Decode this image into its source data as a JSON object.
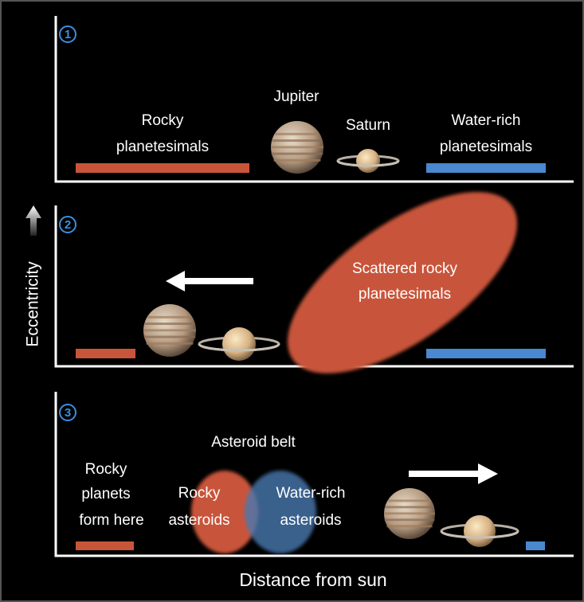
{
  "y_axis_label": "Eccentricity",
  "x_axis_label": "Distance from sun",
  "panels": [
    {
      "number": "1",
      "labels": {
        "rocky": [
          "Rocky",
          "planetesimals"
        ],
        "jupiter": "Jupiter",
        "saturn": "Saturn",
        "water": [
          "Water-rich",
          "planetesimals"
        ]
      }
    },
    {
      "number": "2",
      "labels": {
        "scattered": [
          "Scattered rocky",
          "planetesimals"
        ]
      }
    },
    {
      "number": "3",
      "labels": {
        "belt": "Asteroid belt",
        "planets": [
          "Rocky",
          "planets",
          "form here"
        ],
        "rocky": [
          "Rocky",
          "asteroids"
        ],
        "water": [
          "Water-rich",
          "asteroids"
        ]
      }
    }
  ]
}
